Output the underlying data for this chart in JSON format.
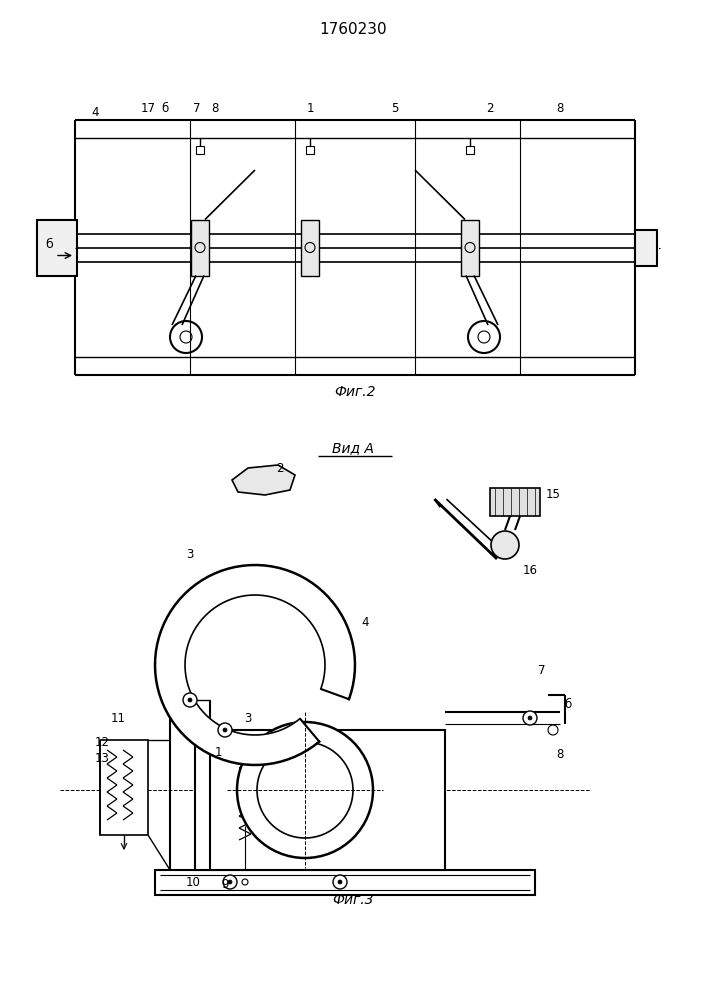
{
  "title": "1760230",
  "fig2_label": "Фиг.2",
  "fig3_label": "Фиг.3",
  "vid_label": "Вид А",
  "bg_color": "#ffffff",
  "line_color": "#000000",
  "fig_size": [
    7.07,
    10.0
  ],
  "dpi": 100
}
